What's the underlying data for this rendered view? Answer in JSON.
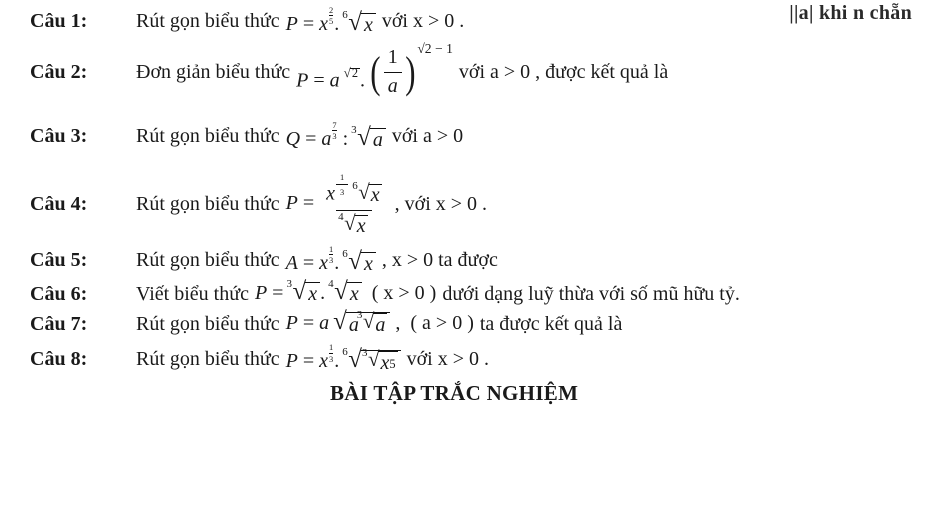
{
  "topFragment": "||a| khi n chẵn",
  "rows": [
    {
      "label": "Câu 1:",
      "prefix": "Rút gọn biểu thức",
      "expr": {
        "var": "P",
        "base": "x",
        "expFrac": [
          "2",
          "5"
        ],
        "rootIdx": "6",
        "rootBody": "x"
      },
      "cond": "với  x > 0 .",
      "tail": ""
    },
    {
      "label": "Câu 2:",
      "prefix": "Đơn giản biểu thức",
      "expr2": {
        "var": "P",
        "base": "a",
        "baseExpRoot": "2",
        "invBase": "a",
        "outerExp": "√2 − 1"
      },
      "cond": "với  a > 0 , được kết quả là",
      "tall": true
    },
    {
      "label": "Câu 3:",
      "prefix": "Rút gọn biểu thức",
      "exprDiv": {
        "var": "Q",
        "base": "a",
        "expFrac": [
          "7",
          "3"
        ],
        "rootIdx": "3",
        "rootBody": "a"
      },
      "cond": "với  a > 0",
      "tall": true
    },
    {
      "label": "Câu 4:",
      "prefix": "Rút gọn biểu thức",
      "bigFrac": {
        "var": "P",
        "numBase": "x",
        "numExpFrac": [
          "1",
          "3"
        ],
        "numRootIdx": "6",
        "numRootBody": "x",
        "denRootIdx": "4",
        "denRootBody": "x"
      },
      "cond": ", với  x > 0 .",
      "tall": true
    },
    {
      "label": "Câu 5:",
      "prefix": "Rút gọn biểu thức",
      "expr": {
        "var": "A",
        "base": "x",
        "expFrac": [
          "1",
          "3"
        ],
        "rootIdx": "6",
        "rootBody": "x"
      },
      "cond": ", x > 0  ta được"
    },
    {
      "label": "Câu 6:",
      "prefix": "Viết biểu thức",
      "twoRoots": {
        "var": "P",
        "aIdx": "3",
        "aBody": "x",
        "bIdx": "4",
        "bBody": "x",
        "paren": "( x > 0 )"
      },
      "cond": "dưới dạng luỹ thừa với số mũ hữu tỷ."
    },
    {
      "label": "Câu 7:",
      "prefix": "Rút gọn biểu thức",
      "nestedRoot": {
        "var": "P",
        "coef": "a",
        "innerIdx": "3",
        "innerBody": "a",
        "midBody": "a",
        "paren": "( a > 0 )"
      },
      "cond": "ta được kết quả là"
    },
    {
      "label": "Câu 8:",
      "prefix": "Rút gọn biểu thức",
      "expr8": {
        "var": "P",
        "base": "x",
        "expFrac": [
          "1",
          "3"
        ],
        "outIdx": "6",
        "inIdx": "3",
        "inBody": "x",
        "inExp": "5"
      },
      "cond": "với  x > 0 ."
    }
  ],
  "footer": "BÀI TẬP TRẮC NGHIỆM"
}
